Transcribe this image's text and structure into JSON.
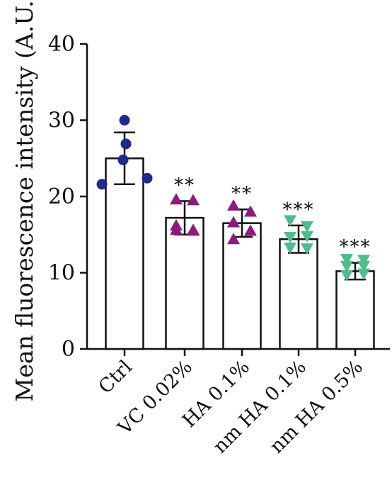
{
  "chart_data": {
    "type": "bar",
    "ylabel": "Mean fluorescence intensity (A.U.)",
    "xlabel": "",
    "ylim": [
      0,
      40
    ],
    "yticks": [
      0,
      10,
      20,
      30,
      40
    ],
    "grid": false,
    "legend": "none",
    "categories": [
      {
        "label": "Ctrl",
        "mean": 25.0,
        "sd": 3.4,
        "significance": "",
        "marker": "circle",
        "color": "#1f2a8c",
        "points": [
          30.0,
          26.9,
          24.8,
          22.4,
          21.6
        ]
      },
      {
        "label": "VC 0.02%",
        "mean": 17.2,
        "sd": 2.2,
        "significance": "**",
        "marker": "triangle-up",
        "color": "#8e1a7e",
        "points": [
          19.6,
          19.5,
          16.2,
          15.5,
          15.6,
          15.6
        ]
      },
      {
        "label": "HA 0.1%",
        "mean": 16.5,
        "sd": 1.8,
        "significance": "**",
        "marker": "triangle-up",
        "color": "#8e1a7e",
        "points": [
          18.8,
          18.0,
          16.6,
          15.5,
          14.4
        ]
      },
      {
        "label": "nm HA 0.1%",
        "mean": 14.4,
        "sd": 1.8,
        "significance": "***",
        "marker": "triangle-down",
        "color": "#4dbd8b",
        "points": [
          16.9,
          16.1,
          14.7,
          14.8,
          13.3,
          13.2
        ]
      },
      {
        "label": "nm HA 0.5%",
        "mean": 10.2,
        "sd": 1.1,
        "significance": "***",
        "marker": "triangle-down",
        "color": "#4dbd8b",
        "points": [
          11.8,
          11.7,
          10.9,
          10.9,
          9.7,
          9.9
        ]
      }
    ]
  }
}
